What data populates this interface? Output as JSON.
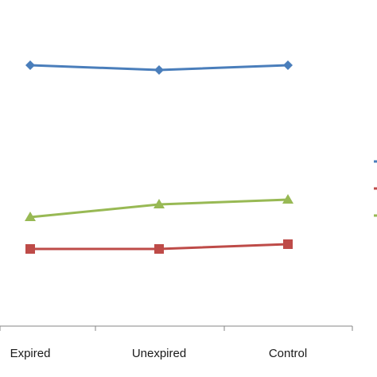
{
  "chart_data": {
    "type": "line",
    "categories": [
      "Expired",
      "Unexpired",
      "Control"
    ],
    "series": [
      {
        "values": [
          82,
          88,
          82
        ],
        "color": "#4a7ebb",
        "marker": "diamond"
      },
      {
        "values": [
          313,
          313,
          307
        ],
        "color": "#be4b48",
        "marker": "square"
      },
      {
        "values": [
          273,
          257,
          251
        ],
        "color": "#98b954",
        "marker": "triangle"
      }
    ],
    "y_axis": "inverted screen-aligned scale (values as read; axis labels not visible)",
    "grid": false,
    "legend_position": "right (partially cropped, labels not visible)"
  }
}
